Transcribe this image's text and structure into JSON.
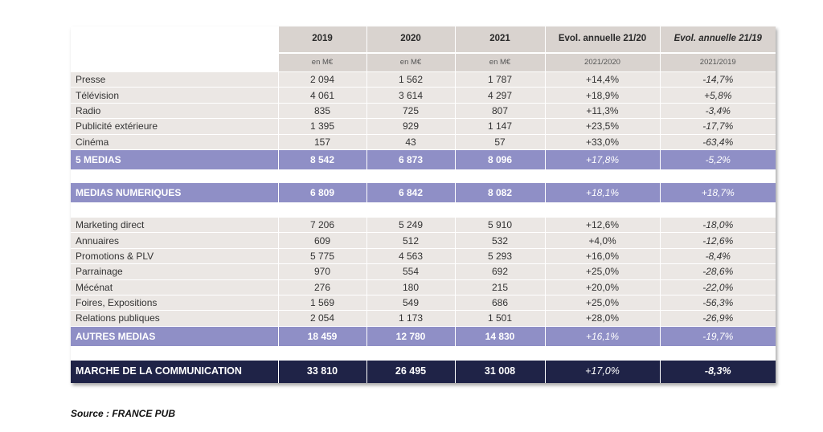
{
  "table": {
    "headers": [
      "",
      "2019",
      "2020",
      "2021",
      "Evol. annuelle 21/20",
      "Evol. annuelle 21/19"
    ],
    "subheaders": [
      "",
      "en M€",
      "en M€",
      "en M€",
      "2021/2020",
      "2021/2019"
    ],
    "group1": [
      [
        "Presse",
        "2 094",
        "1 562",
        "1 787",
        "+14,4%",
        "-14,7%"
      ],
      [
        "Télévision",
        "4 061",
        "3 614",
        "4 297",
        "+18,9%",
        "+5,8%"
      ],
      [
        "Radio",
        "835",
        "725",
        "807",
        "+11,3%",
        "-3,4%"
      ],
      [
        "Publicité extérieure",
        "1 395",
        "929",
        "1 147",
        "+23,5%",
        "-17,7%"
      ],
      [
        "Cinéma",
        "157",
        "43",
        "57",
        "+33,0%",
        "-63,4%"
      ]
    ],
    "total1": [
      "5 MEDIAS",
      "8 542",
      "6 873",
      "8 096",
      "+17,8%",
      "-5,2%"
    ],
    "total2": [
      "MEDIAS NUMERIQUES",
      "6 809",
      "6 842",
      "8 082",
      "+18,1%",
      "+18,7%"
    ],
    "group3": [
      [
        "Marketing direct",
        "7 206",
        "5 249",
        "5 910",
        "+12,6%",
        "-18,0%"
      ],
      [
        "Annuaires",
        "609",
        "512",
        "532",
        "+4,0%",
        "-12,6%"
      ],
      [
        "Promotions & PLV",
        "5 775",
        "4 563",
        "5 293",
        "+16,0%",
        "-8,4%"
      ],
      [
        "Parrainage",
        "970",
        "554",
        "692",
        "+25,0%",
        "-28,6%"
      ],
      [
        "Mécénat",
        "276",
        "180",
        "215",
        "+20,0%",
        "-22,0%"
      ],
      [
        "Foires, Expositions",
        "1 569",
        "549",
        "686",
        "+25,0%",
        "-56,3%"
      ],
      [
        "Relations publiques",
        "2 054",
        "1 173",
        "1 501",
        "+28,0%",
        "-26,9%"
      ]
    ],
    "total3": [
      "AUTRES MEDIAS",
      "18 459",
      "12 780",
      "14 830",
      "+16,1%",
      "-19,7%"
    ],
    "grand_total": [
      "MARCHE DE LA COMMUNICATION",
      "33 810",
      "26 495",
      "31 008",
      "+17,0%",
      "-8,3%"
    ]
  },
  "source": "Source : FRANCE PUB",
  "colors": {
    "header_bg": "#d9d3cf",
    "row_bg": "#ebe7e4",
    "total_bg": "#8f8fc6",
    "grand_total_bg": "#1f2347"
  }
}
